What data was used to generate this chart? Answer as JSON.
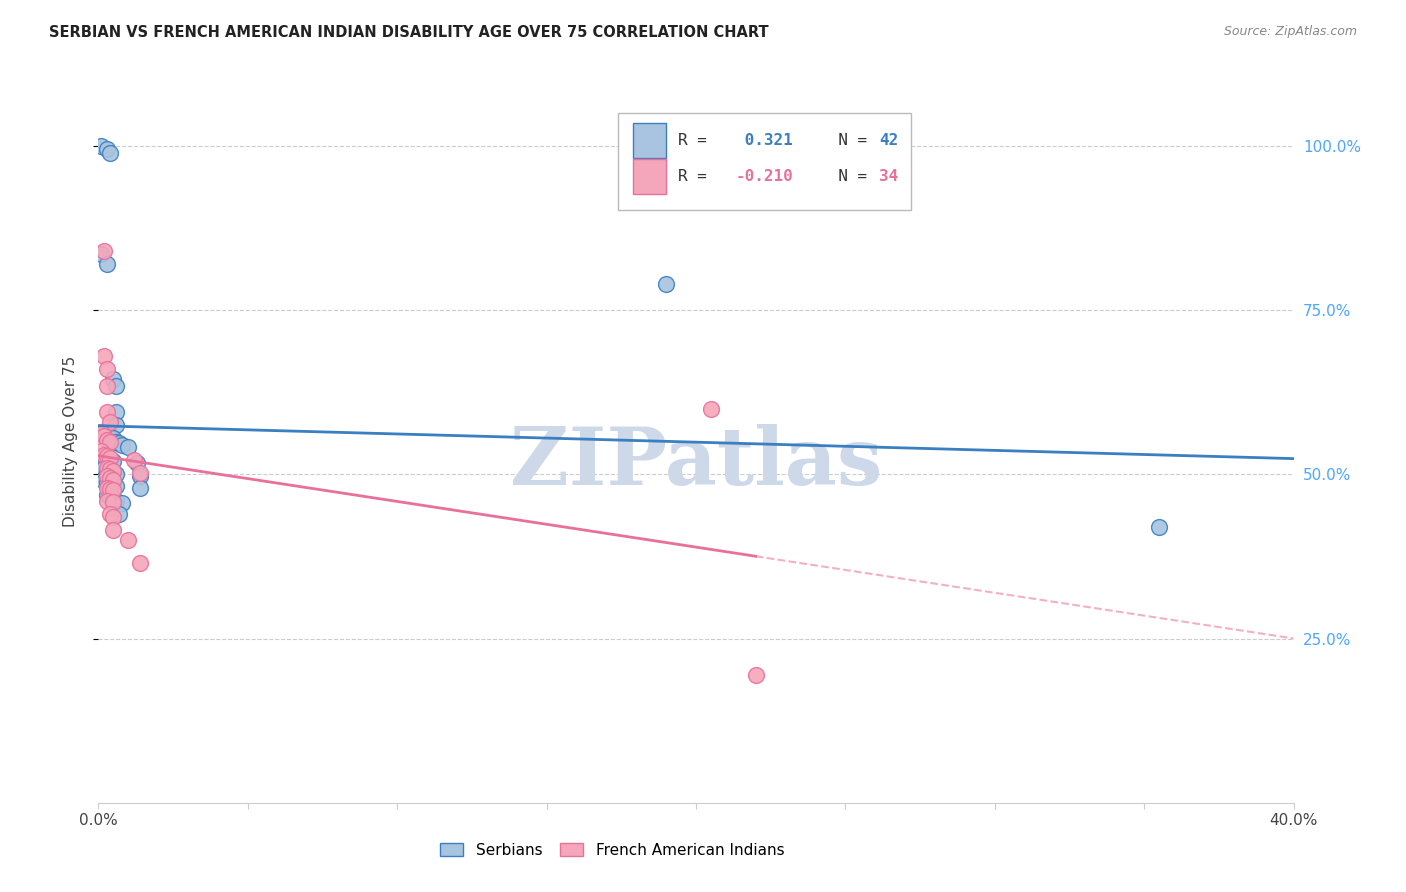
{
  "title": "SERBIAN VS FRENCH AMERICAN INDIAN DISABILITY AGE OVER 75 CORRELATION CHART",
  "source": "Source: ZipAtlas.com",
  "ylabel_label": "Disability Age Over 75",
  "xlim": [
    0.0,
    0.4
  ],
  "ylim": [
    0.0,
    1.1
  ],
  "yticks": [
    0.25,
    0.5,
    0.75,
    1.0
  ],
  "ytick_labels": [
    "25.0%",
    "50.0%",
    "75.0%",
    "100.0%"
  ],
  "xtick_positions": [
    0.0,
    0.05,
    0.1,
    0.15,
    0.2,
    0.25,
    0.3,
    0.35,
    0.4
  ],
  "xtick_labels": [
    "0.0%",
    "",
    "",
    "",
    "",
    "",
    "",
    "",
    "40.0%"
  ],
  "watermark": "ZIPatlas",
  "blue_R": 0.321,
  "blue_N": 42,
  "pink_R": -0.21,
  "pink_N": 34,
  "blue_scatter": [
    [
      0.001,
      1.0
    ],
    [
      0.003,
      0.995
    ],
    [
      0.004,
      0.99
    ],
    [
      0.001,
      0.835
    ],
    [
      0.003,
      0.82
    ],
    [
      0.005,
      0.645
    ],
    [
      0.006,
      0.635
    ],
    [
      0.006,
      0.595
    ],
    [
      0.006,
      0.575
    ],
    [
      0.002,
      0.565
    ],
    [
      0.003,
      0.56
    ],
    [
      0.004,
      0.555
    ],
    [
      0.005,
      0.555
    ],
    [
      0.006,
      0.55
    ],
    [
      0.007,
      0.548
    ],
    [
      0.008,
      0.545
    ],
    [
      0.01,
      0.542
    ],
    [
      0.002,
      0.528
    ],
    [
      0.003,
      0.525
    ],
    [
      0.004,
      0.522
    ],
    [
      0.005,
      0.52
    ],
    [
      0.013,
      0.518
    ],
    [
      0.002,
      0.51
    ],
    [
      0.003,
      0.507
    ],
    [
      0.004,
      0.505
    ],
    [
      0.005,
      0.502
    ],
    [
      0.006,
      0.5
    ],
    [
      0.014,
      0.498
    ],
    [
      0.002,
      0.49
    ],
    [
      0.003,
      0.488
    ],
    [
      0.004,
      0.486
    ],
    [
      0.005,
      0.484
    ],
    [
      0.006,
      0.482
    ],
    [
      0.014,
      0.48
    ],
    [
      0.003,
      0.468
    ],
    [
      0.004,
      0.465
    ],
    [
      0.005,
      0.462
    ],
    [
      0.006,
      0.46
    ],
    [
      0.008,
      0.456
    ],
    [
      0.007,
      0.44
    ],
    [
      0.19,
      0.79
    ],
    [
      0.355,
      0.42
    ]
  ],
  "pink_scatter": [
    [
      0.002,
      0.84
    ],
    [
      0.002,
      0.68
    ],
    [
      0.003,
      0.66
    ],
    [
      0.003,
      0.635
    ],
    [
      0.003,
      0.595
    ],
    [
      0.004,
      0.58
    ],
    [
      0.001,
      0.565
    ],
    [
      0.002,
      0.558
    ],
    [
      0.003,
      0.553
    ],
    [
      0.004,
      0.55
    ],
    [
      0.001,
      0.535
    ],
    [
      0.002,
      0.53
    ],
    [
      0.003,
      0.528
    ],
    [
      0.004,
      0.525
    ],
    [
      0.012,
      0.522
    ],
    [
      0.003,
      0.51
    ],
    [
      0.004,
      0.508
    ],
    [
      0.005,
      0.505
    ],
    [
      0.014,
      0.502
    ],
    [
      0.003,
      0.497
    ],
    [
      0.004,
      0.495
    ],
    [
      0.005,
      0.492
    ],
    [
      0.003,
      0.48
    ],
    [
      0.004,
      0.478
    ],
    [
      0.005,
      0.476
    ],
    [
      0.003,
      0.46
    ],
    [
      0.005,
      0.458
    ],
    [
      0.004,
      0.44
    ],
    [
      0.005,
      0.435
    ],
    [
      0.005,
      0.415
    ],
    [
      0.01,
      0.4
    ],
    [
      0.014,
      0.365
    ],
    [
      0.205,
      0.6
    ],
    [
      0.22,
      0.195
    ]
  ],
  "blue_line_color": "#3a7fc1",
  "pink_line_color": "#e8709a",
  "blue_scatter_color": "#a8c4e0",
  "pink_scatter_color": "#f4a7bb",
  "grid_color": "#cccccc",
  "watermark_color": "#cdd9e8",
  "right_axis_color": "#4da6ff",
  "background_color": "#ffffff"
}
